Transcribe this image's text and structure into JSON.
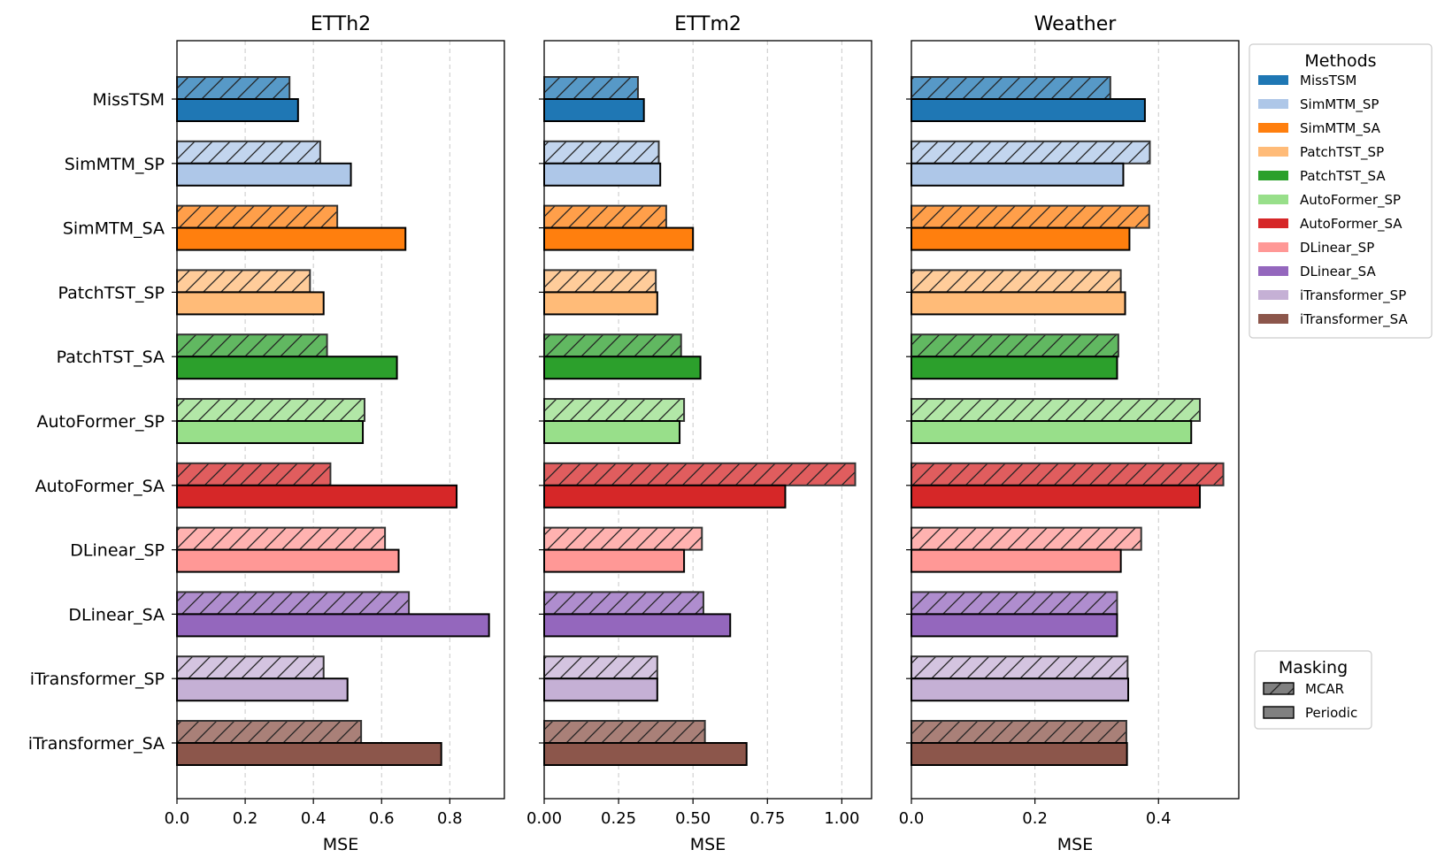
{
  "chart_data": {
    "type": "bar",
    "orientation": "horizontal",
    "categories": [
      "MissTSM",
      "SimMTM_SP",
      "SimMTM_SA",
      "PatchTST_SP",
      "PatchTST_SA",
      "AutoFormer_SP",
      "AutoFormer_SA",
      "DLinear_SP",
      "DLinear_SA",
      "iTransformer_SP",
      "iTransformer_SA"
    ],
    "colors": [
      "#1f77b4",
      "#aec7e8",
      "#ff7f0e",
      "#ffbb78",
      "#2ca02c",
      "#98df8a",
      "#d62728",
      "#ff9896",
      "#9467bd",
      "#c5b0d5",
      "#8c564b"
    ],
    "xlabel": "MSE",
    "panels": [
      {
        "title": "ETTh2",
        "xlim": [
          0,
          0.96
        ],
        "xticks": [
          0,
          0.2,
          0.4,
          0.6,
          0.8
        ],
        "xtick_labels": [
          "0.0",
          "0.2",
          "0.4",
          "0.6",
          "0.8"
        ],
        "series": [
          {
            "name": "MCAR",
            "values": [
              0.33,
              0.42,
              0.47,
              0.39,
              0.44,
              0.55,
              0.45,
              0.61,
              0.68,
              0.43,
              0.54
            ]
          },
          {
            "name": "Periodic",
            "values": [
              0.355,
              0.51,
              0.67,
              0.43,
              0.645,
              0.545,
              0.82,
              0.65,
              0.915,
              0.5,
              0.775
            ]
          }
        ]
      },
      {
        "title": "ETTm2",
        "xlim": [
          0,
          1.1
        ],
        "xticks": [
          0,
          0.25,
          0.5,
          0.75,
          1.0
        ],
        "xtick_labels": [
          "0.00",
          "0.25",
          "0.50",
          "0.75",
          "1.00"
        ],
        "series": [
          {
            "name": "MCAR",
            "values": [
              0.315,
              0.385,
              0.41,
              0.375,
              0.46,
              0.47,
              1.045,
              0.53,
              0.535,
              0.38,
              0.54
            ]
          },
          {
            "name": "Periodic",
            "values": [
              0.335,
              0.39,
              0.5,
              0.38,
              0.525,
              0.455,
              0.81,
              0.47,
              0.625,
              0.38,
              0.68
            ]
          }
        ]
      },
      {
        "title": "Weather",
        "xlim": [
          0,
          0.53
        ],
        "xticks": [
          0,
          0.2,
          0.4
        ],
        "xtick_labels": [
          "0.0",
          "0.2",
          "0.4"
        ],
        "series": [
          {
            "name": "MCAR",
            "values": [
              0.322,
              0.386,
              0.385,
              0.339,
              0.335,
              0.467,
              0.505,
              0.372,
              0.333,
              0.35,
              0.348
            ]
          },
          {
            "name": "Periodic",
            "values": [
              0.378,
              0.343,
              0.353,
              0.346,
              0.333,
              0.453,
              0.467,
              0.339,
              0.333,
              0.351,
              0.349
            ]
          }
        ]
      }
    ],
    "legend_methods": {
      "title": "Methods",
      "entries": [
        "MissTSM",
        "SimMTM_SP",
        "SimMTM_SA",
        "PatchTST_SP",
        "PatchTST_SA",
        "AutoFormer_SP",
        "AutoFormer_SA",
        "DLinear_SP",
        "DLinear_SA",
        "iTransformer_SP",
        "iTransformer_SA"
      ],
      "placement": "right-top"
    },
    "legend_masking": {
      "title": "Masking",
      "entries": [
        "MCAR",
        "Periodic"
      ],
      "placement": "right-bottom"
    },
    "grid": "x-dashed"
  }
}
